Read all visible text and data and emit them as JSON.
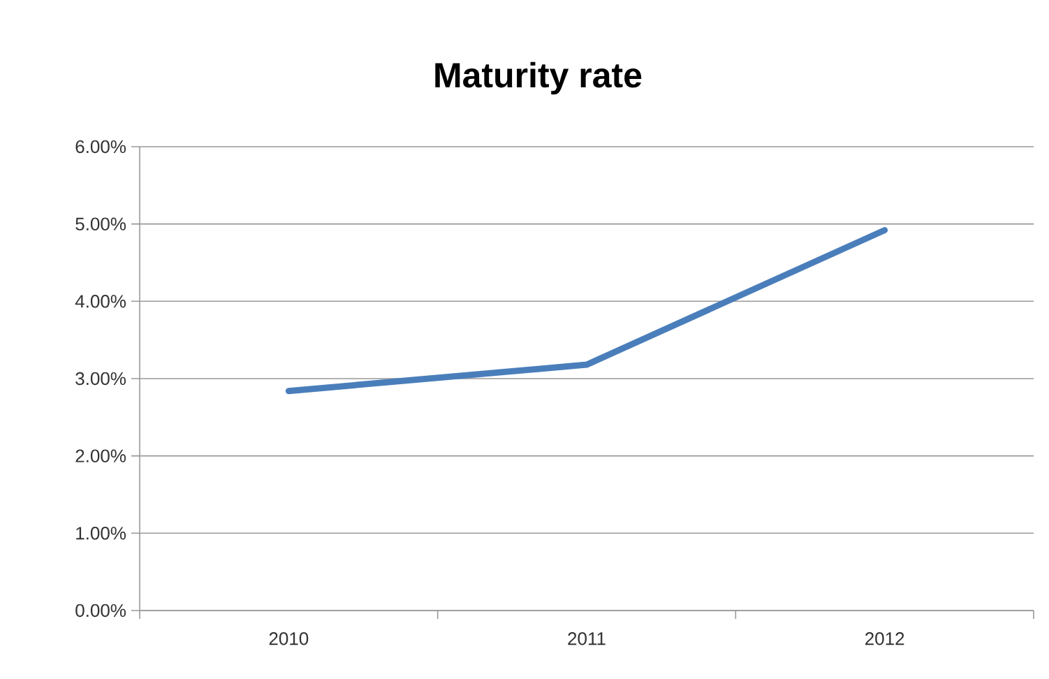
{
  "chart_data": {
    "type": "line",
    "title": "Maturity rate",
    "categories": [
      "2010",
      "2011",
      "2012"
    ],
    "series": [
      {
        "color": "#4a7ebb",
        "values": [
          2.84,
          3.18,
          4.92
        ]
      }
    ],
    "ylim": [
      0,
      6
    ],
    "yticks": [
      {
        "value": 0,
        "label": "0.00%"
      },
      {
        "value": 1,
        "label": "1.00%"
      },
      {
        "value": 2,
        "label": "2.00%"
      },
      {
        "value": 3,
        "label": "3.00%"
      },
      {
        "value": 4,
        "label": "4.00%"
      },
      {
        "value": 5,
        "label": "5.00%"
      },
      {
        "value": 6,
        "label": "6.00%"
      }
    ],
    "grid": "y",
    "marker": "none",
    "line_style": "solid"
  }
}
